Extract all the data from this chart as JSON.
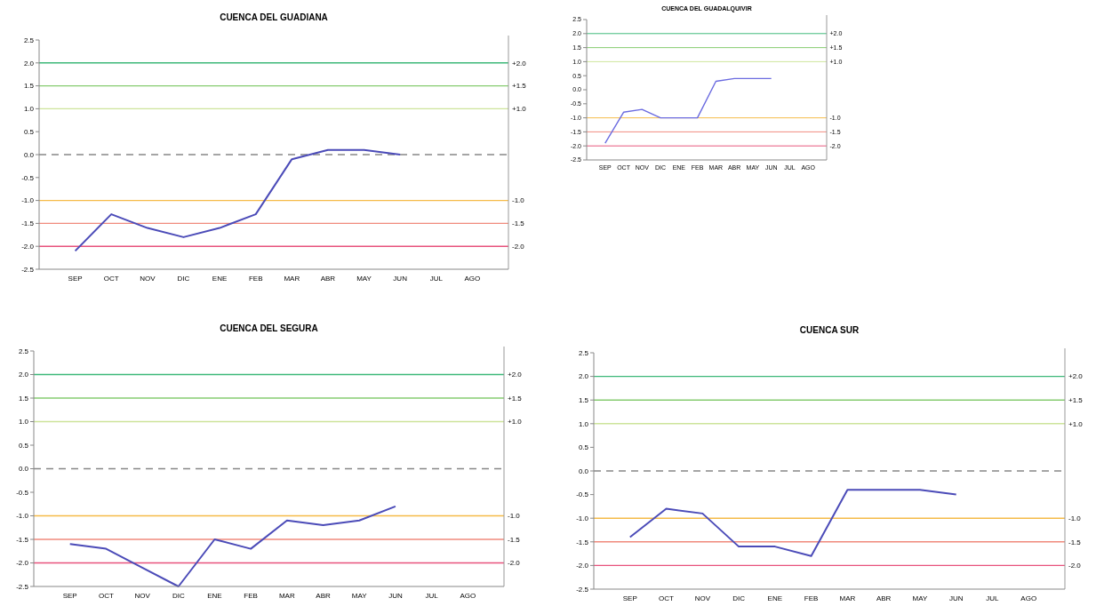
{
  "chart_data": [
    {
      "type": "line",
      "title": "CUENCA DEL GUADIANA",
      "categories": [
        "SEP",
        "OCT",
        "NOV",
        "DIC",
        "ENE",
        "FEB",
        "MAR",
        "ABR",
        "MAY",
        "JUN",
        "JUL",
        "AGO"
      ],
      "series": [
        {
          "color": "#4b4bb8",
          "values": [
            -2.1,
            -1.3,
            -1.6,
            -1.8,
            -1.6,
            -1.3,
            -0.1,
            0.1,
            0.1,
            0.0,
            null,
            null
          ]
        }
      ],
      "ylim": [
        -2.5,
        2.5
      ],
      "yticks": [
        {
          "value": -2.5,
          "label": "-2.5"
        },
        {
          "value": -2,
          "label": "-2.0"
        },
        {
          "value": -1.5,
          "label": "-1.5"
        },
        {
          "value": -1,
          "label": "-1.0"
        },
        {
          "value": -0.5,
          "label": "-0.5"
        },
        {
          "value": 0,
          "label": "0.0"
        },
        {
          "value": 0.5,
          "label": "0.5"
        },
        {
          "value": 1,
          "label": "1.0"
        },
        {
          "value": 1.5,
          "label": "1.5"
        },
        {
          "value": 2,
          "label": "2.0"
        },
        {
          "value": 2.5,
          "label": "2.5"
        }
      ],
      "ref_lines": [
        {
          "axis": "y",
          "value": 2,
          "label": "+2.0",
          "color": "#3cb878"
        },
        {
          "axis": "y",
          "value": 1.5,
          "label": "+1.5",
          "color": "#86cc70"
        },
        {
          "axis": "y",
          "value": 1,
          "label": "+1.0",
          "color": "#cde49a"
        },
        {
          "axis": "y",
          "value": 0,
          "label": null,
          "color": "#888888",
          "line_style": "dashed"
        },
        {
          "axis": "y",
          "value": -1,
          "label": "-1.0",
          "color": "#f5bb48"
        },
        {
          "axis": "y",
          "value": -1.5,
          "label": "-1.5",
          "color": "#f08a7c"
        },
        {
          "axis": "y",
          "value": -2,
          "label": "-2.0",
          "color": "#e8527c"
        }
      ],
      "line_style": "solid"
    },
    {
      "type": "line",
      "title": "CUENCA DEL GUADALQUIVIR",
      "categories": [
        "SEP",
        "OCT",
        "NOV",
        "DIC",
        "ENE",
        "FEB",
        "MAR",
        "ABR",
        "MAY",
        "JUN",
        "JUL",
        "AGO"
      ],
      "series": [
        {
          "color": "#6b6be0",
          "values": [
            -1.9,
            -0.8,
            -0.7,
            -1.0,
            -1.0,
            -1.0,
            0.3,
            0.4,
            0.4,
            0.4,
            null,
            null
          ]
        }
      ],
      "ylim": [
        -2.5,
        2.5
      ],
      "yticks": [
        {
          "value": -2.5,
          "label": "-2.5"
        },
        {
          "value": -2,
          "label": "-2.0"
        },
        {
          "value": -1.5,
          "label": "-1.5"
        },
        {
          "value": -1,
          "label": "-1.0"
        },
        {
          "value": -0.5,
          "label": "-0.5"
        },
        {
          "value": 0,
          "label": "0.0"
        },
        {
          "value": 0.5,
          "label": "0.5"
        },
        {
          "value": 1,
          "label": "1.0"
        },
        {
          "value": 1.5,
          "label": "1.5"
        },
        {
          "value": 2,
          "label": "2.0"
        },
        {
          "value": 2.5,
          "label": "2.5"
        }
      ],
      "ref_lines": [
        {
          "axis": "y",
          "value": 2,
          "label": "+2.0",
          "color": "#3cb878"
        },
        {
          "axis": "y",
          "value": 1.5,
          "label": "+1.5",
          "color": "#86cc70"
        },
        {
          "axis": "y",
          "value": 1,
          "label": "+1.0",
          "color": "#cde49a"
        },
        {
          "axis": "y",
          "value": -1,
          "label": "-1.0",
          "color": "#f5bb48"
        },
        {
          "axis": "y",
          "value": -1.5,
          "label": "-1.5",
          "color": "#f08a7c"
        },
        {
          "axis": "y",
          "value": -2,
          "label": "-2.0",
          "color": "#e8527c"
        }
      ],
      "line_style": "solid"
    },
    {
      "type": "line",
      "title": "CUENCA DEL SEGURA",
      "categories": [
        "SEP",
        "OCT",
        "NOV",
        "DIC",
        "ENE",
        "FEB",
        "MAR",
        "ABR",
        "MAY",
        "JUN",
        "JUL",
        "AGO"
      ],
      "series": [
        {
          "color": "#4b4bb8",
          "values": [
            -1.6,
            -1.7,
            -2.1,
            -2.5,
            -1.5,
            -1.7,
            -1.1,
            -1.2,
            -1.1,
            -0.8,
            null,
            null
          ]
        }
      ],
      "ylim": [
        -2.5,
        2.5
      ],
      "yticks": [
        {
          "value": -2.5,
          "label": "-2.5"
        },
        {
          "value": -2,
          "label": "-2.0"
        },
        {
          "value": -1.5,
          "label": "-1.5"
        },
        {
          "value": -1,
          "label": "-1.0"
        },
        {
          "value": -0.5,
          "label": "-0.5"
        },
        {
          "value": 0,
          "label": "0.0"
        },
        {
          "value": 0.5,
          "label": "0.5"
        },
        {
          "value": 1,
          "label": "1.0"
        },
        {
          "value": 1.5,
          "label": "1.5"
        },
        {
          "value": 2,
          "label": "2.0"
        },
        {
          "value": 2.5,
          "label": "2.5"
        }
      ],
      "ref_lines": [
        {
          "axis": "y",
          "value": 2,
          "label": "+2.0",
          "color": "#3cb878"
        },
        {
          "axis": "y",
          "value": 1.5,
          "label": "+1.5",
          "color": "#86cc70"
        },
        {
          "axis": "y",
          "value": 1,
          "label": "+1.0",
          "color": "#cde49a"
        },
        {
          "axis": "y",
          "value": 0,
          "label": null,
          "color": "#888888",
          "line_style": "dashed"
        },
        {
          "axis": "y",
          "value": -1,
          "label": "-1.0",
          "color": "#f5bb48"
        },
        {
          "axis": "y",
          "value": -1.5,
          "label": "-1.5",
          "color": "#f08a7c"
        },
        {
          "axis": "y",
          "value": -2,
          "label": "-2.0",
          "color": "#e8527c"
        }
      ],
      "line_style": "solid"
    },
    {
      "type": "line",
      "title": "CUENCA SUR",
      "categories": [
        "SEP",
        "OCT",
        "NOV",
        "DIC",
        "ENE",
        "FEB",
        "MAR",
        "ABR",
        "MAY",
        "JUN",
        "JUL",
        "AGO"
      ],
      "series": [
        {
          "color": "#4b4bb8",
          "values": [
            -1.4,
            -0.8,
            -0.9,
            -1.6,
            -1.6,
            -1.8,
            -0.4,
            -0.4,
            -0.4,
            -0.5,
            null,
            null
          ]
        }
      ],
      "ylim": [
        -2.5,
        2.5
      ],
      "yticks": [
        {
          "value": -2.5,
          "label": "-2.5"
        },
        {
          "value": -2,
          "label": "-2.0"
        },
        {
          "value": -1.5,
          "label": "-1.5"
        },
        {
          "value": -1,
          "label": "-1.0"
        },
        {
          "value": -0.5,
          "label": "-0.5"
        },
        {
          "value": 0,
          "label": "0.0"
        },
        {
          "value": 0.5,
          "label": "0.5"
        },
        {
          "value": 1,
          "label": "1.0"
        },
        {
          "value": 1.5,
          "label": "1.5"
        },
        {
          "value": 2,
          "label": "2.0"
        },
        {
          "value": 2.5,
          "label": "2.5"
        }
      ],
      "ref_lines": [
        {
          "axis": "y",
          "value": 2,
          "label": "+2.0",
          "color": "#3cb878"
        },
        {
          "axis": "y",
          "value": 1.5,
          "label": "+1.5",
          "color": "#86cc70"
        },
        {
          "axis": "y",
          "value": 1,
          "label": "+1.0",
          "color": "#cde49a"
        },
        {
          "axis": "y",
          "value": 0,
          "label": null,
          "color": "#888888",
          "line_style": "dashed"
        },
        {
          "axis": "y",
          "value": -1,
          "label": "-1.0",
          "color": "#f5bb48"
        },
        {
          "axis": "y",
          "value": -1.5,
          "label": "-1.5",
          "color": "#f08a7c"
        },
        {
          "axis": "y",
          "value": -2,
          "label": "-2.0",
          "color": "#e8527c"
        }
      ],
      "line_style": "solid"
    }
  ]
}
